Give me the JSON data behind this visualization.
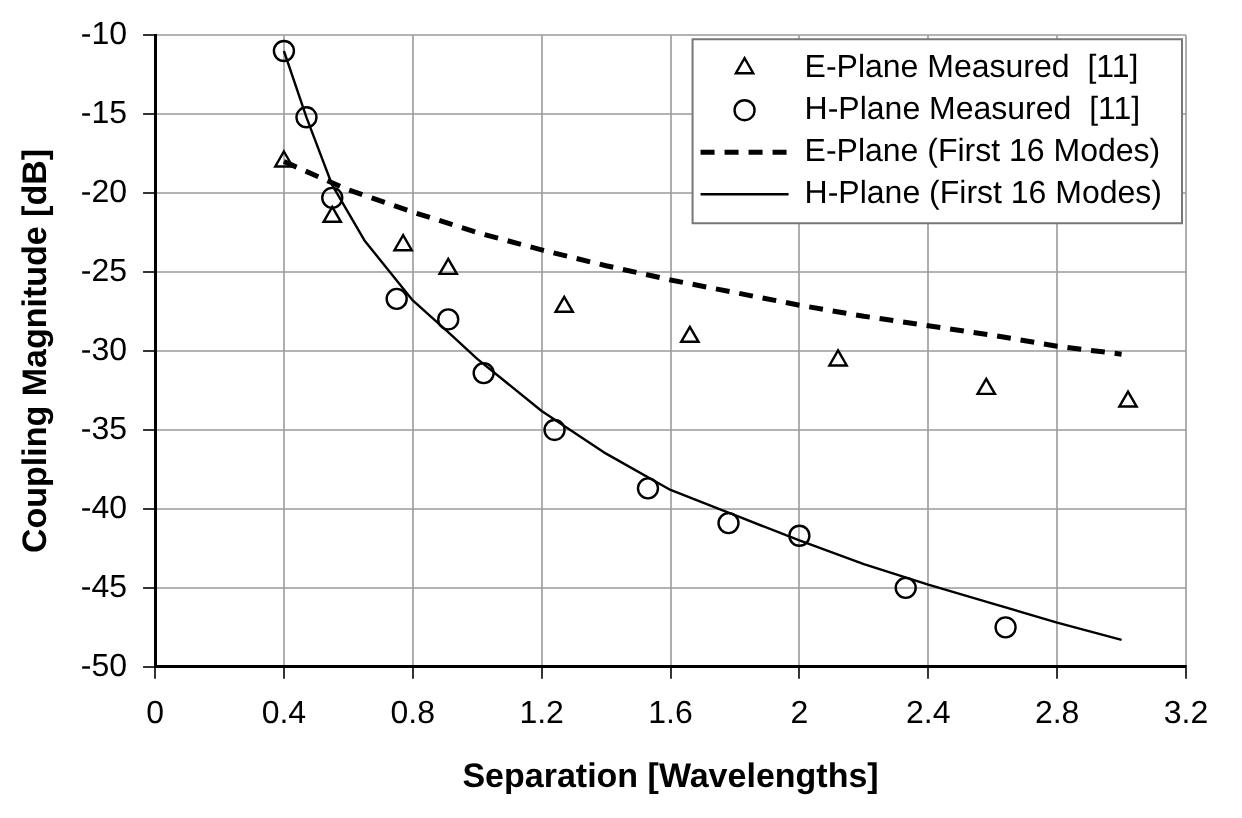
{
  "chart_data": {
    "type": "scatter",
    "xlabel": "Separation [Wavelengths]",
    "ylabel": "Coupling Magnitude [dB]",
    "xlim": [
      0,
      3.2
    ],
    "xticks": [
      0,
      0.4,
      0.8,
      1.2,
      1.6,
      2,
      2.4,
      2.8,
      3.2
    ],
    "ylim": [
      -50,
      -10
    ],
    "yticks": [
      -50,
      -45,
      -40,
      -35,
      -30,
      -25,
      -20,
      -15,
      -10
    ],
    "grid": true,
    "legend": "top right",
    "series": [
      {
        "name": "E-Plane Measured  [11]",
        "type": "scatter",
        "marker": "triangle",
        "color": "#000000",
        "x": [
          0.4,
          0.55,
          0.77,
          0.91,
          1.27,
          1.66,
          2.12,
          2.58,
          3.02
        ],
        "values": [
          -18,
          -21.5,
          -23.3,
          -24.8,
          -27.2,
          -29.1,
          -30.6,
          -32.4,
          -33.2
        ]
      },
      {
        "name": "H-Plane Measured  [11]",
        "type": "scatter",
        "marker": "circle",
        "color": "#000000",
        "x": [
          0.4,
          0.47,
          0.55,
          0.75,
          0.91,
          1.02,
          1.24,
          1.53,
          1.78,
          2.0,
          2.33,
          2.64
        ],
        "values": [
          -11,
          -15.2,
          -20.3,
          -26.7,
          -28,
          -31.4,
          -35,
          -38.7,
          -40.9,
          -41.7,
          -45,
          -47.5
        ]
      },
      {
        "name": "E-Plane (First 16 Modes)",
        "type": "line",
        "marker": "none",
        "line_style": "dashed",
        "color": "#000000",
        "x": [
          0.4,
          0.6,
          0.8,
          1.0,
          1.2,
          1.4,
          1.6,
          1.8,
          2.0,
          2.2,
          2.4,
          2.6,
          2.8,
          3.0
        ],
        "values": [
          -18,
          -19.8,
          -21.2,
          -22.5,
          -23.6,
          -24.6,
          -25.5,
          -26.3,
          -27.1,
          -27.8,
          -28.4,
          -29.0,
          -29.7,
          -30.2
        ]
      },
      {
        "name": "H-Plane (First 16 Modes)",
        "type": "line",
        "marker": "none",
        "line_style": "solid",
        "color": "#000000",
        "x": [
          0.4,
          0.47,
          0.55,
          0.65,
          0.8,
          0.92,
          1.0,
          1.2,
          1.4,
          1.6,
          1.8,
          2.0,
          2.2,
          2.4,
          2.6,
          2.8,
          3.0
        ],
        "values": [
          -11,
          -15.2,
          -19.5,
          -23,
          -26.8,
          -29,
          -30.5,
          -33.8,
          -36.5,
          -38.8,
          -40.4,
          -42,
          -43.5,
          -44.8,
          -46,
          -47.2,
          -48.3
        ]
      }
    ]
  }
}
